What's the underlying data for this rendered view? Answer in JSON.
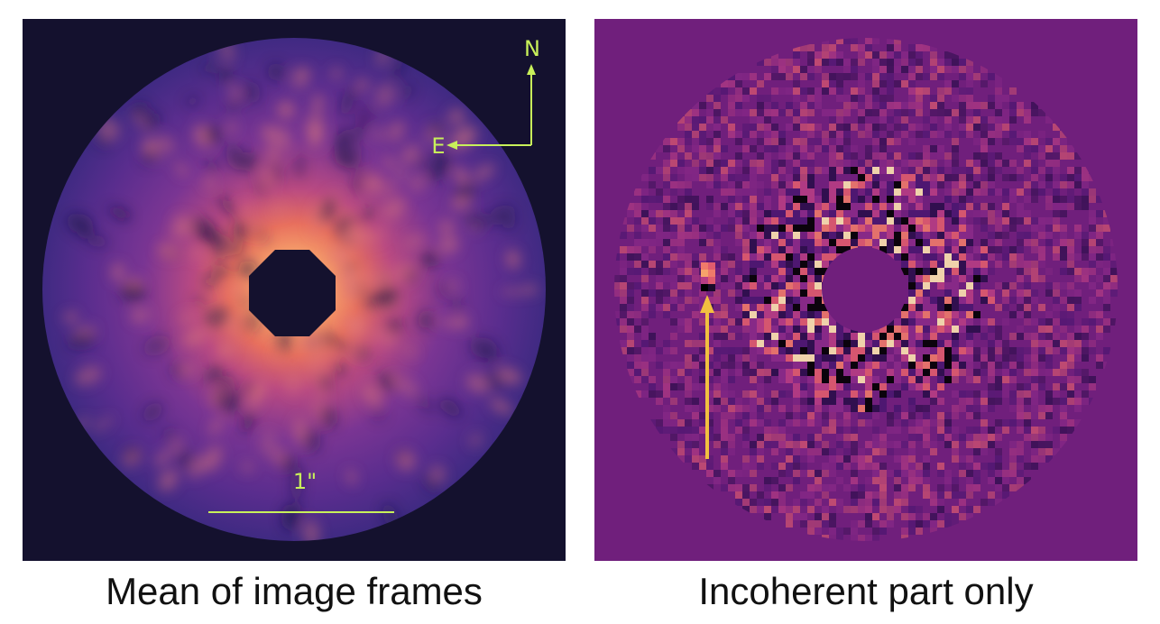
{
  "panels": [
    {
      "caption": "Mean of image frames",
      "compass": {
        "north": "N",
        "east": "E"
      },
      "scale_bar_label": "1\"",
      "colors": {
        "background": "#14112e",
        "annotation": "#c8f05a",
        "colormap": "magma"
      }
    },
    {
      "caption": "Incoherent part only",
      "colors": {
        "background": "#701f7c",
        "arrow": "#f2c040",
        "colormap": "magma"
      }
    }
  ]
}
